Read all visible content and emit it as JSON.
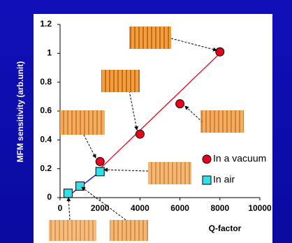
{
  "chart_data": {
    "type": "scatter",
    "x_label": "Q-factor",
    "y_label": "MFM sensitivity (arb.unit)",
    "xlim": [
      0,
      10000
    ],
    "xticks": [
      0,
      2000,
      4000,
      6000,
      8000,
      10000
    ],
    "ylim": [
      0,
      1.2
    ],
    "yticks": [
      0,
      0.2,
      0.4,
      0.6,
      0.8,
      1,
      1.2
    ],
    "legend": "lower right",
    "series": [
      {
        "name": "In a vacuum",
        "color": "#e8001c",
        "marker": "circle",
        "x": [
          2000,
          4000,
          6000,
          8000
        ],
        "values": [
          0.25,
          0.44,
          0.65,
          1.01
        ]
      },
      {
        "name": "In air",
        "color": "#33e0e8",
        "marker": "square",
        "x": [
          400,
          1000,
          2000
        ],
        "values": [
          0.03,
          0.08,
          0.18
        ]
      }
    ],
    "lines": [
      {
        "color": "#e8001c",
        "x": [
          2000,
          8000
        ],
        "values": [
          0.2,
          1.0
        ]
      },
      {
        "color": "#0000e0",
        "x": [
          400,
          2000
        ],
        "values": [
          0.01,
          0.18
        ]
      }
    ]
  }
}
